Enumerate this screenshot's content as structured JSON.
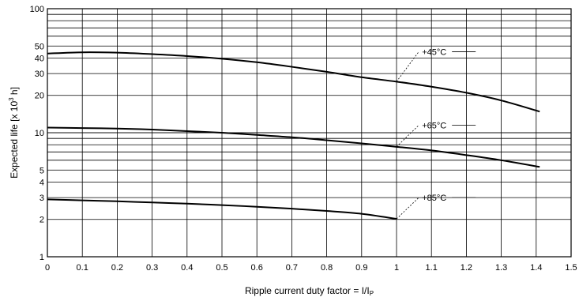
{
  "chart_data": {
    "type": "line",
    "title": "",
    "xlabel": "Ripple current duty factor = I/I",
    "xlabel_subscript": "P",
    "ylabel": "Expected life [x 10",
    "ylabel_superscript": "3",
    "ylabel_suffix": " h]",
    "xlim": [
      0,
      1.5
    ],
    "ylim": [
      1,
      100
    ],
    "yscale": "log",
    "grid": true,
    "x_ticks": [
      "0",
      "0.1",
      "0.2",
      "0.3",
      "0.4",
      "0.5",
      "0.6",
      "0.7",
      "0.8",
      "0.9",
      "1",
      "1.1",
      "1.2",
      "1.3",
      "1.4",
      "1.5"
    ],
    "y_tick_labels": [
      "1",
      "2",
      "3",
      "4",
      "5",
      "10",
      "20",
      "30",
      "40",
      "50",
      "100"
    ],
    "y_tick_values": [
      1,
      2,
      3,
      4,
      5,
      10,
      20,
      30,
      40,
      50,
      100
    ],
    "legend": "none",
    "series": [
      {
        "name": "+45°C",
        "x": [
          0,
          0.1,
          0.2,
          0.3,
          0.4,
          0.5,
          0.6,
          0.7,
          0.8,
          0.9,
          1.0,
          1.1,
          1.2,
          1.3,
          1.41
        ],
        "values": [
          43.5,
          44.5,
          44.2,
          43,
          41.5,
          39.5,
          37,
          34,
          31,
          28,
          25.8,
          23.5,
          21,
          18.2,
          14.8
        ]
      },
      {
        "name": "+65°C",
        "x": [
          0,
          0.1,
          0.2,
          0.3,
          0.4,
          0.5,
          0.6,
          0.7,
          0.8,
          0.9,
          1.0,
          1.1,
          1.2,
          1.3,
          1.41
        ],
        "values": [
          11,
          10.9,
          10.8,
          10.6,
          10.3,
          10,
          9.6,
          9.2,
          8.7,
          8.2,
          7.7,
          7.2,
          6.6,
          6.0,
          5.3
        ]
      },
      {
        "name": "+85°C",
        "x": [
          0,
          0.1,
          0.2,
          0.3,
          0.4,
          0.5,
          0.6,
          0.7,
          0.8,
          0.9,
          1.0
        ],
        "values": [
          2.9,
          2.85,
          2.8,
          2.74,
          2.68,
          2.61,
          2.53,
          2.44,
          2.34,
          2.22,
          2.02
        ]
      }
    ],
    "annotations": [
      {
        "series": "+45°C",
        "label": "+45°C",
        "x": 1.0,
        "y": 25.8,
        "label_x": 1.1,
        "label_y": 45
      },
      {
        "series": "+65°C",
        "label": "+65°C",
        "x": 1.0,
        "y": 7.7,
        "label_x": 1.1,
        "label_y": 11.5
      },
      {
        "series": "+85°C",
        "label": "+85°C",
        "x": 1.0,
        "y": 2.02,
        "label_x": 1.1,
        "label_y": 3.0
      }
    ]
  }
}
